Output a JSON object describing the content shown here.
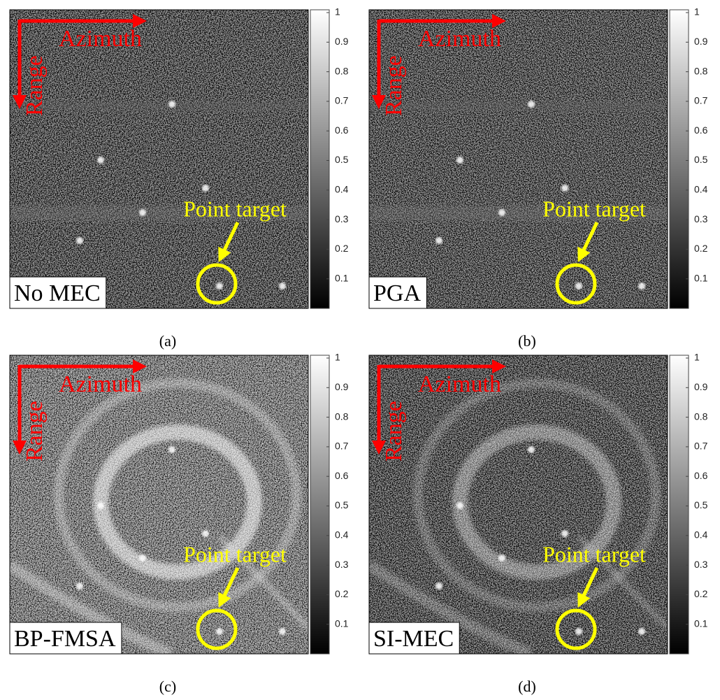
{
  "panels": [
    {
      "label": "No MEC",
      "caption": "(a)",
      "azimuth": "Azimuth",
      "range": "Range",
      "annotation": "Point target",
      "colorbar_ticks": [
        0.1,
        0.2,
        0.3,
        0.4,
        0.5,
        0.6,
        0.7,
        0.8,
        0.9,
        1
      ]
    },
    {
      "label": "PGA",
      "caption": "(b)",
      "azimuth": "Azimuth",
      "range": "Range",
      "annotation": "Point target",
      "colorbar_ticks": [
        0.1,
        0.2,
        0.3,
        0.4,
        0.5,
        0.6,
        0.7,
        0.8,
        0.9,
        1
      ]
    },
    {
      "label": "BP-FMSA",
      "caption": "(c)",
      "azimuth": "Azimuth",
      "range": "Range",
      "annotation": "Point target",
      "colorbar_ticks": [
        0.1,
        0.2,
        0.3,
        0.4,
        0.5,
        0.6,
        0.7,
        0.8,
        0.9,
        1
      ]
    },
    {
      "label": "SI-MEC",
      "caption": "(d)",
      "azimuth": "Azimuth",
      "range": "Range",
      "annotation": "Point target",
      "colorbar_ticks": [
        0.1,
        0.2,
        0.3,
        0.4,
        0.5,
        0.6,
        0.7,
        0.8,
        0.9,
        1
      ]
    }
  ]
}
